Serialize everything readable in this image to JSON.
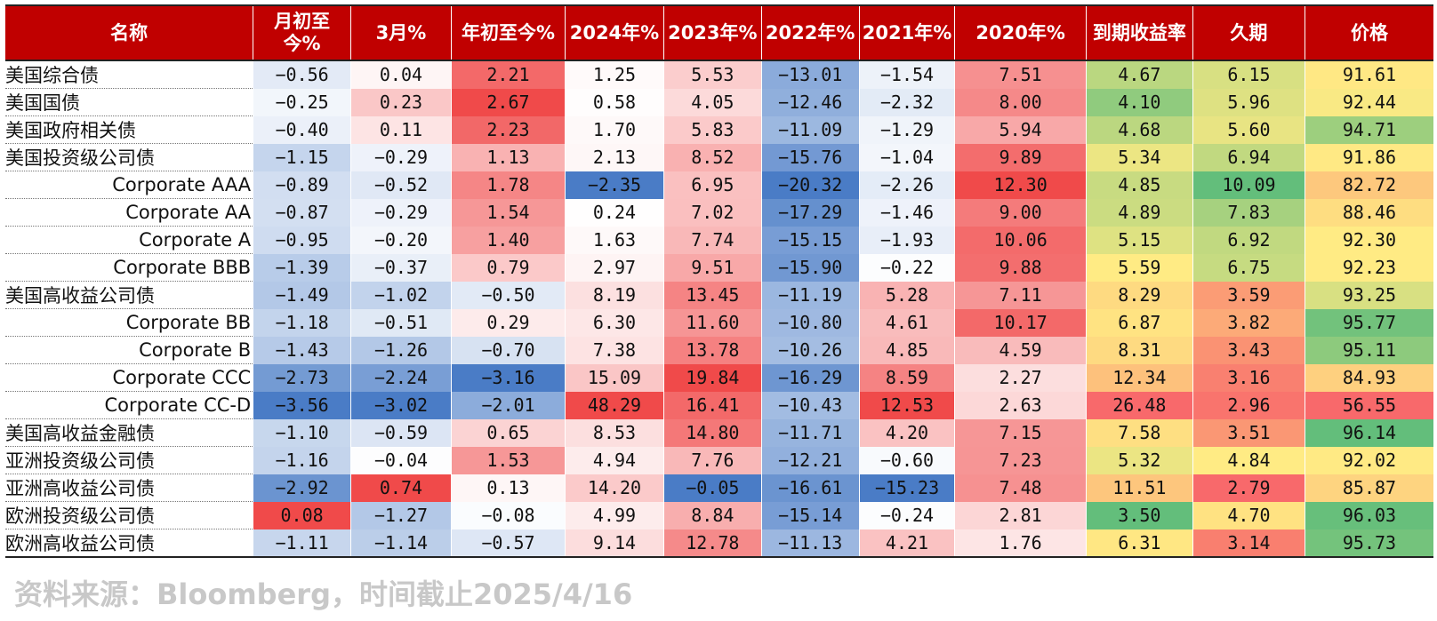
{
  "chart_data": {
    "type": "table",
    "columns": [
      "名称",
      "月初至今%",
      "3月%",
      "年初至今%",
      "2024年%",
      "2023年%",
      "2022年%",
      "2021年%",
      "2020年%",
      "到期收益率",
      "久期",
      "价格"
    ],
    "rows": [
      {
        "name": "美国综合债",
        "sub": false,
        "values": [
          "-0.56",
          "0.04",
          "2.21",
          "1.25",
          "5.53",
          "-13.01",
          "-1.54",
          "7.51",
          "4.67",
          "6.15",
          "91.61"
        ]
      },
      {
        "name": "美国国债",
        "sub": false,
        "values": [
          "-0.25",
          "0.23",
          "2.67",
          "0.58",
          "4.05",
          "-12.46",
          "-2.32",
          "8.00",
          "4.10",
          "5.96",
          "92.44"
        ]
      },
      {
        "name": "美国政府相关债",
        "sub": false,
        "values": [
          "-0.40",
          "0.11",
          "2.23",
          "1.70",
          "5.83",
          "-11.09",
          "-1.29",
          "5.94",
          "4.68",
          "5.60",
          "94.71"
        ]
      },
      {
        "name": "美国投资级公司债",
        "sub": false,
        "values": [
          "-1.15",
          "-0.29",
          "1.13",
          "2.13",
          "8.52",
          "-15.76",
          "-1.04",
          "9.89",
          "5.34",
          "6.94",
          "91.86"
        ]
      },
      {
        "name": "Corporate AAA",
        "sub": true,
        "values": [
          "-0.89",
          "-0.52",
          "1.78",
          "-2.35",
          "6.95",
          "-20.32",
          "-2.26",
          "12.30",
          "4.85",
          "10.09",
          "82.72"
        ]
      },
      {
        "name": "Corporate AA",
        "sub": true,
        "values": [
          "-0.87",
          "-0.29",
          "1.54",
          "0.24",
          "7.02",
          "-17.29",
          "-1.46",
          "9.00",
          "4.89",
          "7.83",
          "88.46"
        ]
      },
      {
        "name": "Corporate A",
        "sub": true,
        "values": [
          "-0.95",
          "-0.20",
          "1.40",
          "1.63",
          "7.74",
          "-15.15",
          "-1.93",
          "10.06",
          "5.15",
          "6.92",
          "92.30"
        ]
      },
      {
        "name": "Corporate BBB",
        "sub": true,
        "values": [
          "-1.39",
          "-0.37",
          "0.79",
          "2.97",
          "9.51",
          "-15.90",
          "-0.22",
          "9.88",
          "5.59",
          "6.75",
          "92.23"
        ]
      },
      {
        "name": "美国高收益公司债",
        "sub": false,
        "values": [
          "-1.49",
          "-1.02",
          "-0.50",
          "8.19",
          "13.45",
          "-11.19",
          "5.28",
          "7.11",
          "8.29",
          "3.59",
          "93.25"
        ]
      },
      {
        "name": "Corporate BB",
        "sub": true,
        "values": [
          "-1.18",
          "-0.51",
          "0.29",
          "6.30",
          "11.60",
          "-10.80",
          "4.61",
          "10.17",
          "6.87",
          "3.82",
          "95.77"
        ]
      },
      {
        "name": "Corporate B",
        "sub": true,
        "values": [
          "-1.43",
          "-1.26",
          "-0.70",
          "7.38",
          "13.78",
          "-10.26",
          "4.85",
          "4.59",
          "8.31",
          "3.43",
          "95.11"
        ]
      },
      {
        "name": "Corporate CCC",
        "sub": true,
        "values": [
          "-2.73",
          "-2.24",
          "-3.16",
          "15.09",
          "19.84",
          "-16.29",
          "8.59",
          "2.27",
          "12.34",
          "3.16",
          "84.93"
        ]
      },
      {
        "name": "Corporate CC-D",
        "sub": true,
        "values": [
          "-3.56",
          "-3.02",
          "-2.01",
          "48.29",
          "16.41",
          "-10.43",
          "12.53",
          "2.63",
          "26.48",
          "2.96",
          "56.55"
        ]
      },
      {
        "name": "美国高收益金融债",
        "sub": false,
        "values": [
          "-1.10",
          "-0.59",
          "0.65",
          "8.53",
          "14.80",
          "-11.71",
          "4.20",
          "7.15",
          "7.58",
          "3.51",
          "96.14"
        ]
      },
      {
        "name": "亚洲投资级公司债",
        "sub": false,
        "values": [
          "-1.16",
          "-0.04",
          "1.53",
          "4.94",
          "7.76",
          "-12.21",
          "-0.60",
          "7.23",
          "5.32",
          "4.84",
          "92.02"
        ]
      },
      {
        "name": "亚洲高收益公司债",
        "sub": false,
        "values": [
          "-2.92",
          "0.74",
          "0.13",
          "14.20",
          "-0.05",
          "-16.61",
          "-15.23",
          "7.48",
          "11.51",
          "2.79",
          "85.87"
        ]
      },
      {
        "name": "欧洲投资级公司债",
        "sub": false,
        "values": [
          "0.08",
          "-1.27",
          "-0.08",
          "4.99",
          "8.84",
          "-15.14",
          "-0.24",
          "2.81",
          "3.50",
          "4.70",
          "96.03"
        ]
      },
      {
        "name": "欧洲高收益公司债",
        "sub": false,
        "values": [
          "-1.11",
          "-1.14",
          "-0.57",
          "9.14",
          "12.78",
          "-11.13",
          "4.21",
          "1.76",
          "6.31",
          "3.14",
          "95.73"
        ]
      }
    ]
  },
  "colors": {
    "header_bg": "#c00000",
    "header_text": "#ffffff",
    "negative": "#4a7cc6",
    "positive": "#f04a4a",
    "high": "#f8696b",
    "mid": "#ffeb84",
    "low": "#63be7b"
  },
  "source": "资料来源：Bloomberg，时间截止2025/4/16"
}
